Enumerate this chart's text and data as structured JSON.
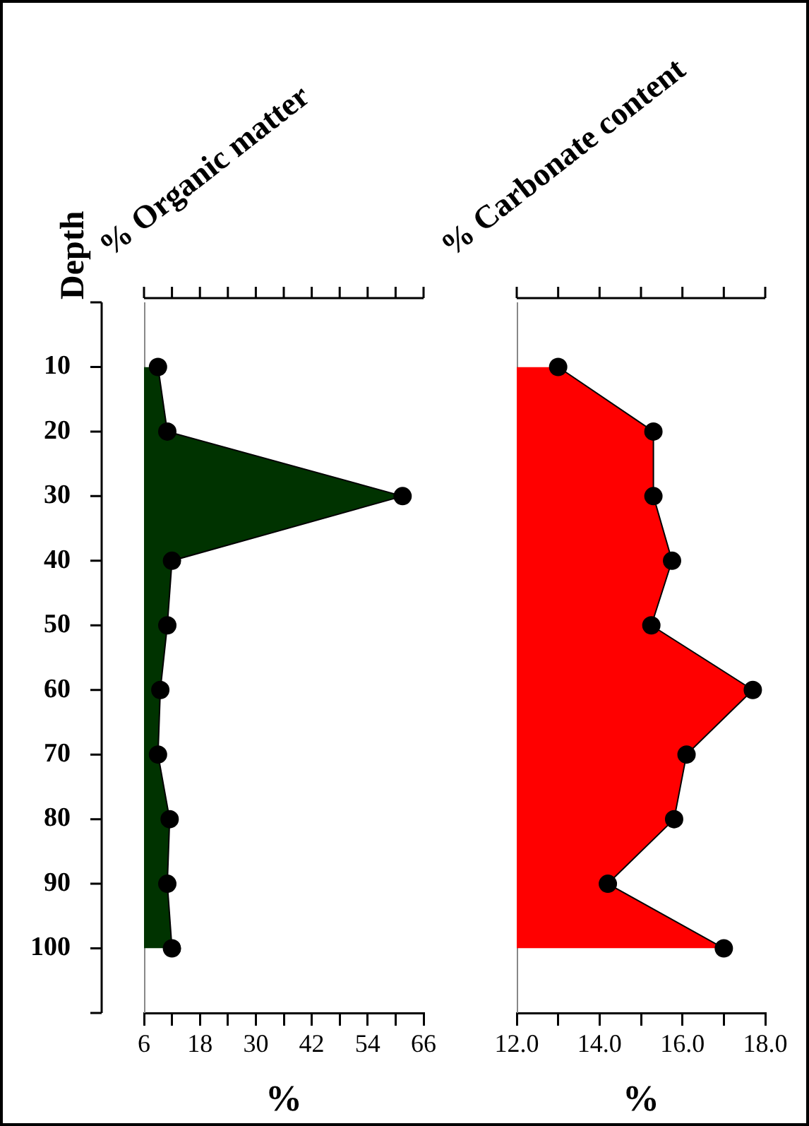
{
  "chart_data": [
    {
      "type": "area",
      "orientation": "horizontal",
      "title": "% Organic matter",
      "xlabel": "%",
      "ylabel": "Depth",
      "x": [
        10,
        20,
        30,
        40,
        50,
        60,
        70,
        80,
        90,
        100
      ],
      "series": [
        {
          "color": "#003300",
          "values": [
            9,
            11,
            61.5,
            12,
            11,
            9.5,
            9,
            11.5,
            11,
            12
          ]
        }
      ],
      "marker": "circle",
      "xlim": [
        6,
        66
      ],
      "xticks": [
        6,
        {
          "value": 12,
          "label": null
        },
        18,
        {
          "value": 24,
          "label": null
        },
        30,
        {
          "value": 36,
          "label": null
        },
        42,
        {
          "value": 48,
          "label": null
        },
        54,
        {
          "value": 60,
          "label": null
        },
        66
      ],
      "ylim": [
        110,
        0
      ],
      "yticks": [
        10,
        20,
        30,
        40,
        50,
        60,
        70,
        80,
        90,
        100
      ]
    },
    {
      "type": "area",
      "orientation": "horizontal",
      "title": "% Carbonate content",
      "xlabel": "%",
      "x": [
        10,
        20,
        30,
        40,
        50,
        60,
        70,
        80,
        90,
        100
      ],
      "series": [
        {
          "color": "#ff0000",
          "values": [
            13.0,
            15.3,
            15.3,
            15.75,
            15.25,
            17.7,
            16.1,
            15.8,
            14.2,
            17.0
          ]
        }
      ],
      "marker": "circle",
      "xlim": [
        12,
        18
      ],
      "xticks": [
        {
          "value": 12,
          "label": "12.0"
        },
        {
          "value": 13,
          "label": null
        },
        {
          "value": 14,
          "label": "14.0"
        },
        {
          "value": 15,
          "label": null
        },
        {
          "value": 16,
          "label": "16.0"
        },
        {
          "value": 17,
          "label": null
        },
        {
          "value": 18,
          "label": "18.0"
        }
      ],
      "ylim": [
        110,
        0
      ],
      "tick_labels": "x"
    }
  ]
}
